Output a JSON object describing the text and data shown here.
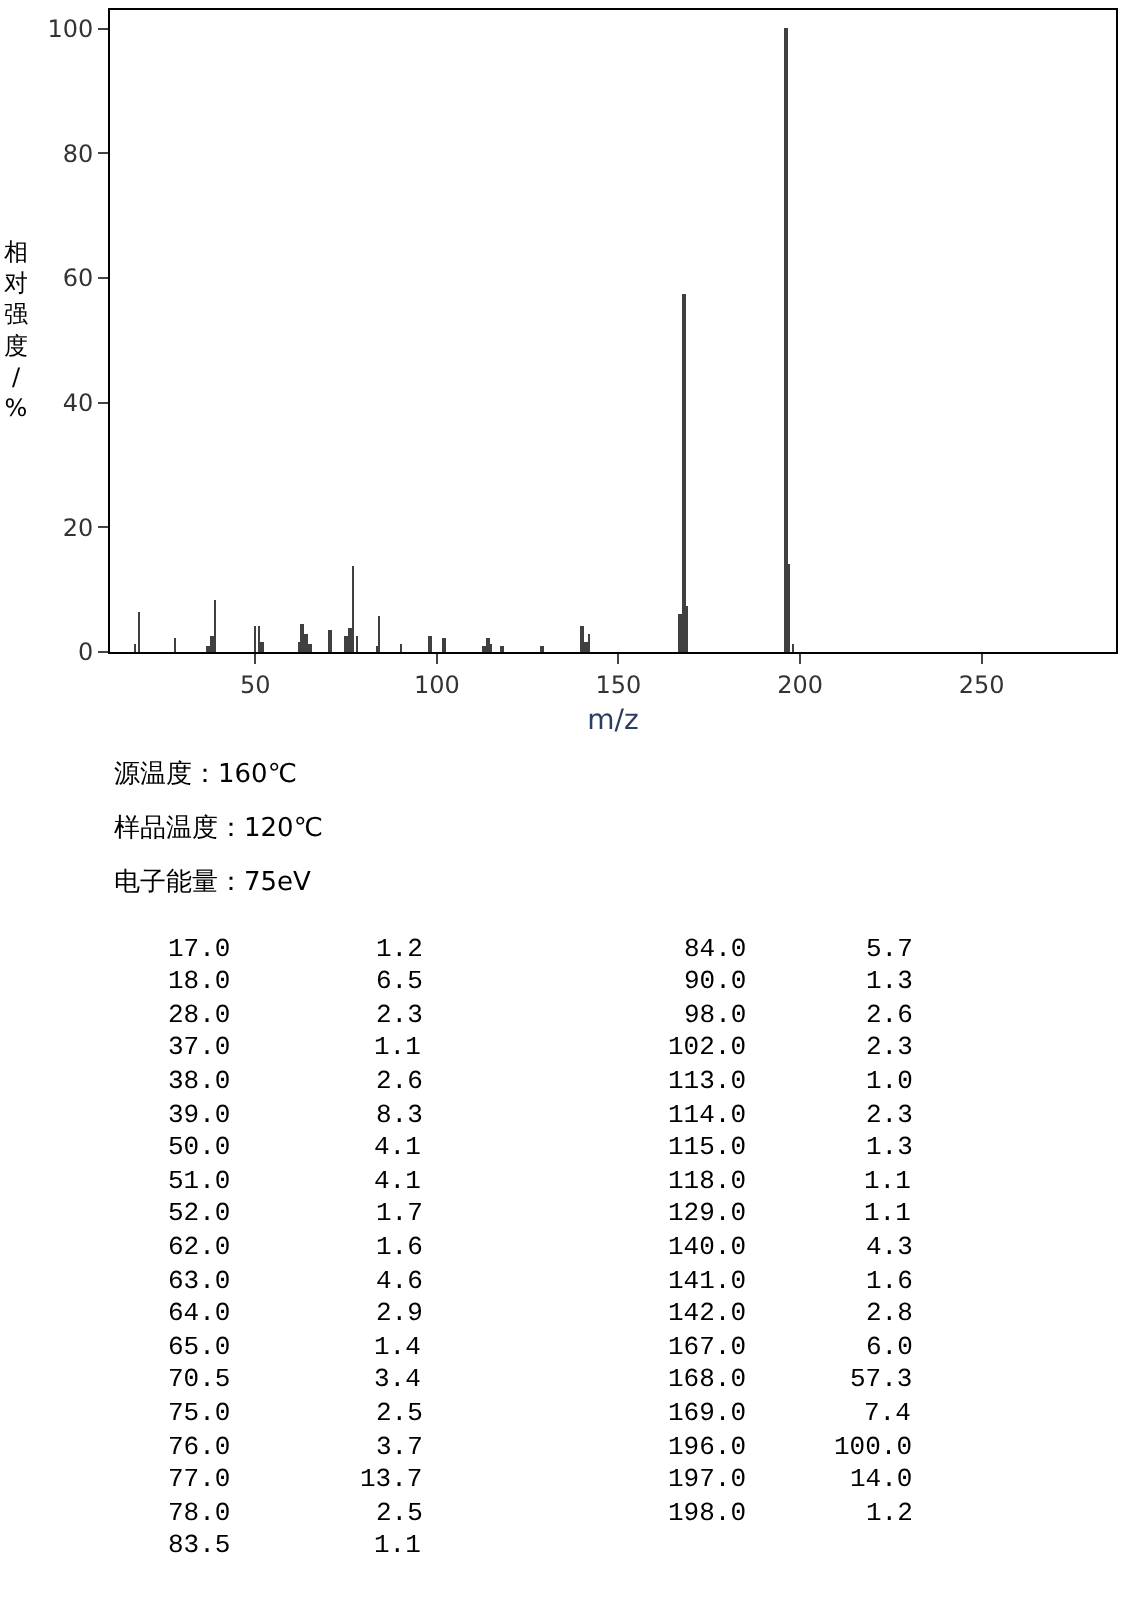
{
  "chart_data": [
    {
      "type": "bar",
      "xlabel": "m/z",
      "ylabel": "相对强度/%",
      "x": [
        17.0,
        18.0,
        28.0,
        37.0,
        38.0,
        39.0,
        50.0,
        51.0,
        52.0,
        62.0,
        63.0,
        64.0,
        65.0,
        70.5,
        75.0,
        76.0,
        77.0,
        78.0,
        83.5,
        84.0,
        90.0,
        98.0,
        102.0,
        113.0,
        114.0,
        115.0,
        118.0,
        129.0,
        140.0,
        141.0,
        142.0,
        167.0,
        168.0,
        169.0,
        196.0,
        197.0,
        198.0
      ],
      "values": [
        1.2,
        6.5,
        2.3,
        1.1,
        2.6,
        8.3,
        4.1,
        4.1,
        1.7,
        1.6,
        4.6,
        2.9,
        1.4,
        3.4,
        2.5,
        3.7,
        13.7,
        2.5,
        1.1,
        5.7,
        1.3,
        2.6,
        2.3,
        1.0,
        2.3,
        1.3,
        1.1,
        1.1,
        4.3,
        1.6,
        2.8,
        6.0,
        57.3,
        7.4,
        100.0,
        14.0,
        1.2
      ],
      "color": "#404040",
      "xlim": [
        10,
        287
      ],
      "xticks": [
        50,
        100,
        150,
        200,
        250
      ],
      "ylim": [
        0,
        103
      ],
      "yticks": [
        0,
        20,
        40,
        60,
        80,
        100
      ],
      "annotations": [
        "源温度：160℃",
        "样品温度：120℃",
        "电子能量：75eV"
      ]
    },
    {
      "type": "other",
      "categories": [
        "17.0",
        "18.0",
        "28.0",
        "37.0",
        "38.0",
        "39.0",
        "50.0",
        "51.0",
        "52.0",
        "62.0",
        "63.0",
        "64.0",
        "65.0",
        "70.5",
        "75.0",
        "76.0",
        "77.0",
        "78.0",
        "83.5",
        "84.0",
        "90.0",
        "98.0",
        "102.0",
        "113.0",
        "114.0",
        "115.0",
        "118.0",
        "129.0",
        "140.0",
        "141.0",
        "142.0",
        "167.0",
        "168.0",
        "169.0",
        "196.0",
        "197.0",
        "198.0"
      ],
      "values": [
        1.2,
        6.5,
        2.3,
        1.1,
        2.6,
        8.3,
        4.1,
        4.1,
        1.7,
        1.6,
        4.6,
        2.9,
        1.4,
        3.4,
        2.5,
        3.7,
        13.7,
        2.5,
        1.1,
        5.7,
        1.3,
        2.6,
        2.3,
        1.0,
        2.3,
        1.3,
        1.1,
        1.1,
        4.3,
        1.6,
        2.8,
        6.0,
        57.3,
        7.4,
        100.0,
        14.0,
        1.2
      ],
      "value_labels": [
        "1.2",
        "6.5",
        "2.3",
        "1.1",
        "2.6",
        "8.3",
        "4.1",
        "4.1",
        "1.7",
        "1.6",
        "4.6",
        "2.9",
        "1.4",
        "3.4",
        "2.5",
        "3.7",
        "13.7",
        "2.5",
        "1.1",
        "5.7",
        "1.3",
        "2.6",
        "2.3",
        "1.0",
        "2.3",
        "1.3",
        "1.1",
        "1.1",
        "4.3",
        "1.6",
        "2.8",
        "6.0",
        "57.3",
        "7.4",
        "100.0",
        "14.0",
        "1.2"
      ]
    }
  ]
}
